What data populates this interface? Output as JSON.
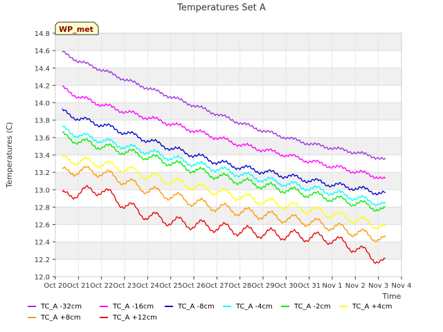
{
  "chart_data": {
    "type": "line",
    "title": "Temperatures Set A",
    "xlabel": "Time",
    "ylabel": "Temperatures (C)",
    "badge": "WP_met",
    "ylim": [
      12.0,
      14.8
    ],
    "yticks": [
      "12.0",
      "12.2",
      "12.4",
      "12.6",
      "12.8",
      "13.0",
      "13.2",
      "13.4",
      "13.6",
      "13.8",
      "14.0",
      "14.2",
      "14.4",
      "14.6",
      "14.8"
    ],
    "xlim": [
      0,
      15
    ],
    "xticks": [
      "Oct 20",
      "Oct 21",
      "Oct 22",
      "Oct 23",
      "Oct 24",
      "Oct 25",
      "Oct 26",
      "Oct 27",
      "Oct 28",
      "Oct 29",
      "Oct 30",
      "Oct 31",
      "Nov 1",
      "Nov 2",
      "Nov 3",
      "Nov 4"
    ],
    "grid": true,
    "legend_position": "bottom",
    "series": [
      {
        "name": "TC_A -32cm",
        "color": "#9b30e0",
        "x": [
          0.3,
          1,
          2,
          3,
          4,
          5,
          6,
          7,
          8,
          9,
          10,
          11,
          12,
          13,
          14,
          14.3
        ],
        "values": [
          14.58,
          14.48,
          14.38,
          14.27,
          14.17,
          14.07,
          13.97,
          13.87,
          13.77,
          13.68,
          13.6,
          13.53,
          13.48,
          13.43,
          13.37,
          13.34
        ]
      },
      {
        "name": "TC_A -16cm",
        "color": "#ff00ff",
        "x": [
          0.3,
          1,
          2,
          3,
          4,
          5,
          6,
          7,
          8,
          9,
          10,
          11,
          12,
          13,
          14,
          14.3
        ],
        "values": [
          14.17,
          14.07,
          13.98,
          13.9,
          13.83,
          13.76,
          13.68,
          13.6,
          13.52,
          13.46,
          13.4,
          13.33,
          13.27,
          13.21,
          13.15,
          13.11
        ]
      },
      {
        "name": "TC_A -8cm",
        "color": "#0000cc",
        "x": [
          0.3,
          1,
          2,
          3,
          4,
          5,
          6,
          7,
          8,
          9,
          10,
          11,
          12,
          13,
          14,
          14.3
        ],
        "values": [
          13.9,
          13.82,
          13.75,
          13.66,
          13.57,
          13.48,
          13.4,
          13.32,
          13.26,
          13.21,
          13.16,
          13.11,
          13.06,
          13.02,
          12.97,
          12.95
        ]
      },
      {
        "name": "TC_A -4cm",
        "color": "#00ffff",
        "x": [
          0.3,
          1,
          2,
          3,
          4,
          5,
          6,
          7,
          8,
          9,
          10,
          11,
          12,
          13,
          14,
          14.3
        ],
        "values": [
          13.7,
          13.63,
          13.57,
          13.5,
          13.44,
          13.37,
          13.3,
          13.24,
          13.18,
          13.12,
          13.07,
          13.02,
          12.97,
          12.91,
          12.85,
          12.82
        ]
      },
      {
        "name": "TC_A -2cm",
        "color": "#00ee00",
        "x": [
          0.3,
          1,
          2,
          3,
          4,
          5,
          6,
          7,
          8,
          9,
          10,
          11,
          12,
          13,
          14,
          14.3
        ],
        "values": [
          13.62,
          13.56,
          13.5,
          13.44,
          13.38,
          13.31,
          13.23,
          13.16,
          13.1,
          13.05,
          13.0,
          12.95,
          12.9,
          12.85,
          12.79,
          12.76
        ]
      },
      {
        "name": "TC_A +4cm",
        "color": "#ffff00",
        "x": [
          0.3,
          1,
          2,
          3,
          4,
          5,
          6,
          7,
          8,
          9,
          10,
          11,
          12,
          13,
          14,
          14.3
        ],
        "values": [
          13.35,
          13.33,
          13.3,
          13.24,
          13.16,
          13.1,
          13.04,
          12.98,
          12.92,
          12.87,
          12.82,
          12.77,
          12.72,
          12.66,
          12.59,
          12.55
        ]
      },
      {
        "name": "TC_A +8cm",
        "color": "#ff9900",
        "x": [
          0.3,
          1,
          2,
          3,
          4,
          5,
          6,
          7,
          8,
          9,
          10,
          11,
          12,
          13,
          14,
          14.3
        ],
        "values": [
          13.2,
          13.22,
          13.2,
          13.1,
          13.0,
          12.93,
          12.86,
          12.8,
          12.75,
          12.71,
          12.67,
          12.63,
          12.58,
          12.51,
          12.45,
          12.42
        ]
      },
      {
        "name": "TC_A +12cm",
        "color": "#ee0000",
        "x": [
          0.3,
          1,
          2,
          3,
          4,
          5,
          6,
          7,
          8,
          9,
          10,
          11,
          12,
          13,
          14,
          14.3
        ],
        "values": [
          12.92,
          12.97,
          13.0,
          12.83,
          12.7,
          12.64,
          12.6,
          12.57,
          12.53,
          12.5,
          12.48,
          12.46,
          12.43,
          12.33,
          12.2,
          12.15
        ]
      }
    ]
  }
}
